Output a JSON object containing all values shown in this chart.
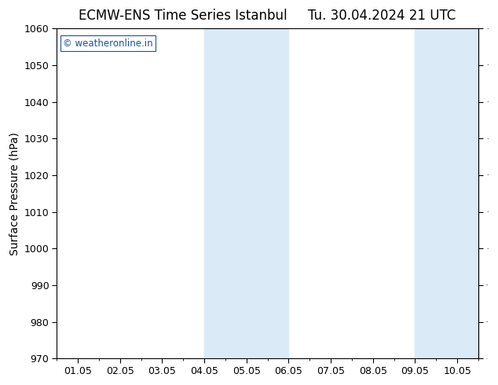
{
  "title": "ECMW-ENS Time Series Istanbul     Tu. 30.04.2024 21 UTC",
  "ylabel": "Surface Pressure (hPa)",
  "ylim": [
    970,
    1060
  ],
  "ytick_interval": 10,
  "xtick_labels": [
    "01.05",
    "02.05",
    "03.05",
    "04.05",
    "05.05",
    "06.05",
    "07.05",
    "08.05",
    "09.05",
    "10.05"
  ],
  "xtick_positions": [
    0,
    1,
    2,
    3,
    4,
    5,
    6,
    7,
    8,
    9
  ],
  "xlim_min": -0.5,
  "xlim_max": 9.5,
  "shade_bands": [
    {
      "xmin": 3.0,
      "xmax": 5.0
    },
    {
      "xmin": 8.0,
      "xmax": 9.5
    }
  ],
  "shade_color": "#daeaf7",
  "watermark_text": "© weatheronline.in",
  "watermark_color": "#1a52a0",
  "bg_color": "#ffffff",
  "title_fontsize": 12,
  "label_fontsize": 10,
  "tick_fontsize": 9
}
